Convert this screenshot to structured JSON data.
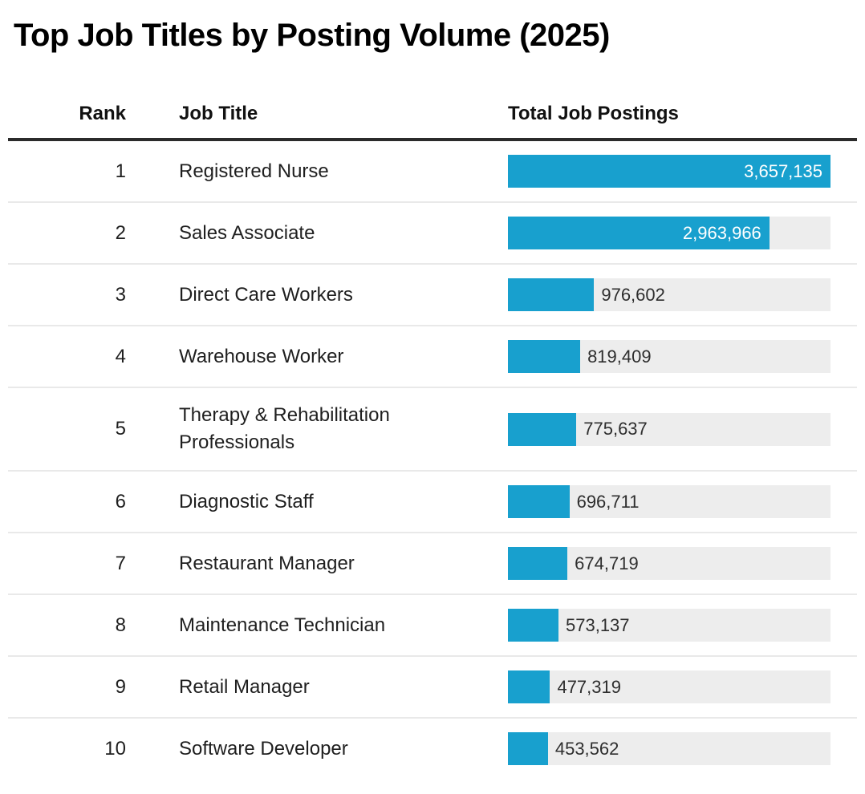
{
  "page": {
    "title": "Top Job Titles by Posting Volume (2025)"
  },
  "table": {
    "columns": {
      "rank": "Rank",
      "job_title": "Job Title",
      "total_postings": "Total Job Postings"
    },
    "max_value": 3657135,
    "rows": [
      {
        "rank": "1",
        "job_title": "Registered Nurse",
        "value": 3657135,
        "value_label": "3,657,135"
      },
      {
        "rank": "2",
        "job_title": "Sales Associate",
        "value": 2963966,
        "value_label": "2,963,966"
      },
      {
        "rank": "3",
        "job_title": "Direct Care Workers",
        "value": 976602,
        "value_label": "976,602"
      },
      {
        "rank": "4",
        "job_title": "Warehouse Worker",
        "value": 819409,
        "value_label": "819,409"
      },
      {
        "rank": "5",
        "job_title": "Therapy & Rehabilitation Professionals",
        "value": 775637,
        "value_label": "775,637"
      },
      {
        "rank": "6",
        "job_title": "Diagnostic Staff",
        "value": 696711,
        "value_label": "696,711"
      },
      {
        "rank": "7",
        "job_title": "Restaurant Manager",
        "value": 674719,
        "value_label": "674,719"
      },
      {
        "rank": "8",
        "job_title": "Maintenance Technician",
        "value": 573137,
        "value_label": "573,137"
      },
      {
        "rank": "9",
        "job_title": "Retail Manager",
        "value": 477319,
        "value_label": "477,319"
      },
      {
        "rank": "10",
        "job_title": "Software Developer",
        "value": 453562,
        "value_label": "453,562"
      }
    ]
  },
  "chart_data": {
    "type": "bar",
    "orientation": "horizontal",
    "title": "Top Job Titles by Posting Volume (2025)",
    "categories": [
      "Registered Nurse",
      "Sales Associate",
      "Direct Care Workers",
      "Warehouse Worker",
      "Therapy & Rehabilitation Professionals",
      "Diagnostic Staff",
      "Restaurant Manager",
      "Maintenance Technician",
      "Retail Manager",
      "Software Developer"
    ],
    "values": [
      3657135,
      2963966,
      976602,
      819409,
      775637,
      696711,
      674719,
      573137,
      477319,
      453562
    ],
    "value_labels": [
      "3,657,135",
      "2,963,966",
      "976,602",
      "819,409",
      "775,637",
      "696,711",
      "674,719",
      "573,137",
      "477,319",
      "453,562"
    ],
    "xlabel": "Total Job Postings",
    "ylabel": "Job Title",
    "xlim": [
      0,
      3657135
    ],
    "grid": false,
    "legend": false,
    "bar_color": "#18a0ce",
    "track_color": "#ededed",
    "value_label_placement_rule": "inside bar (white) when value/max >= 0.5, otherwise outside right of bar (dark)"
  }
}
